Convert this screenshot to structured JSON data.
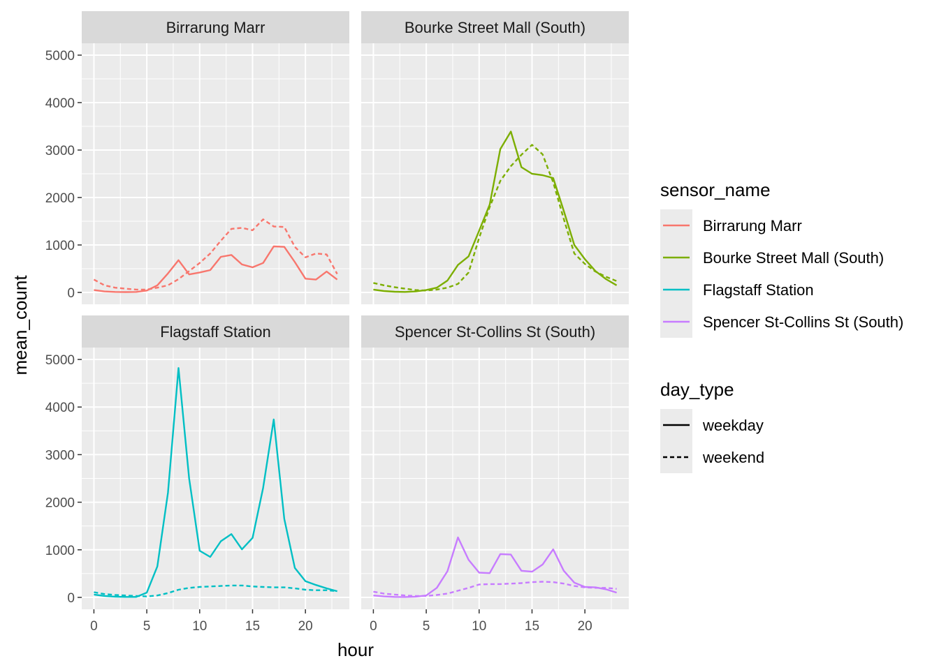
{
  "chart_data": {
    "type": "line",
    "layout": "facet_wrap 2x2",
    "xlabel": "hour",
    "ylabel": "mean_count",
    "xlim": [
      -1.15,
      24.15
    ],
    "ylim": [
      -250,
      5250
    ],
    "x_ticks": [
      0,
      5,
      10,
      15,
      20
    ],
    "x_tick_labels": [
      "0",
      "5",
      "10",
      "15",
      "20"
    ],
    "y_ticks": [
      0,
      1000,
      2000,
      3000,
      4000,
      5000
    ],
    "y_tick_labels": [
      "0",
      "1000",
      "2000",
      "3000",
      "4000",
      "5000"
    ],
    "x": [
      0,
      1,
      2,
      3,
      4,
      5,
      6,
      7,
      8,
      9,
      10,
      11,
      12,
      13,
      14,
      15,
      16,
      17,
      18,
      19,
      20,
      21,
      22,
      23
    ],
    "grid": true,
    "legend_placement": "right",
    "colors": {
      "Birrarung Marr": "#F8766D",
      "Bourke Street Mall (South)": "#7CAE00",
      "Flagstaff Station": "#00BFC4",
      "Spencer St-Collins St (South)": "#C77CFF"
    },
    "panels": [
      {
        "strip": "Birrarung Marr",
        "series": [
          {
            "sensor_name": "Birrarung Marr",
            "day_type": "weekday",
            "values": [
              50,
              20,
              10,
              8,
              10,
              40,
              150,
              400,
              680,
              380,
              420,
              470,
              750,
              790,
              590,
              530,
              620,
              970,
              960,
              640,
              290,
              270,
              440,
              270
            ]
          },
          {
            "sensor_name": "Birrarung Marr",
            "day_type": "weekend",
            "values": [
              270,
              150,
              100,
              80,
              60,
              60,
              100,
              150,
              280,
              450,
              620,
              820,
              1090,
              1340,
              1360,
              1310,
              1540,
              1390,
              1380,
              960,
              740,
              820,
              800,
              390
            ]
          }
        ]
      },
      {
        "strip": "Bourke Street Mall (South)",
        "series": [
          {
            "sensor_name": "Bourke Street Mall (South)",
            "day_type": "weekday",
            "values": [
              60,
              30,
              15,
              10,
              20,
              50,
              100,
              250,
              580,
              760,
              1300,
              1850,
              3020,
              3390,
              2640,
              2500,
              2470,
              2410,
              1720,
              1000,
              700,
              450,
              280,
              150
            ]
          },
          {
            "sensor_name": "Bourke Street Mall (South)",
            "day_type": "weekend",
            "values": [
              200,
              150,
              110,
              80,
              50,
              40,
              60,
              100,
              180,
              420,
              1150,
              1800,
              2350,
              2660,
              2900,
              3110,
              2910,
              2320,
              1550,
              820,
              600,
              440,
              330,
              240
            ]
          }
        ]
      },
      {
        "strip": "Flagstaff Station",
        "series": [
          {
            "sensor_name": "Flagstaff Station",
            "day_type": "weekday",
            "values": [
              60,
              30,
              15,
              10,
              10,
              100,
              650,
              2200,
              4820,
              2500,
              980,
              850,
              1180,
              1330,
              1010,
              1250,
              2300,
              3740,
              1650,
              620,
              340,
              260,
              190,
              130
            ]
          },
          {
            "sensor_name": "Flagstaff Station",
            "day_type": "weekend",
            "values": [
              110,
              70,
              50,
              40,
              30,
              20,
              40,
              90,
              160,
              200,
              220,
              230,
              240,
              250,
              250,
              230,
              220,
              210,
              210,
              190,
              160,
              150,
              150,
              130
            ]
          }
        ]
      },
      {
        "strip": "Spencer St-Collins St (South)",
        "series": [
          {
            "sensor_name": "Spencer St-Collins St (South)",
            "day_type": "weekday",
            "values": [
              40,
              20,
              10,
              8,
              15,
              40,
              200,
              550,
              1260,
              790,
              520,
              510,
              910,
              900,
              560,
              540,
              690,
              1010,
              560,
              310,
              220,
              210,
              170,
              100
            ]
          },
          {
            "sensor_name": "Spencer St-Collins St (South)",
            "day_type": "weekend",
            "values": [
              120,
              80,
              60,
              40,
              30,
              30,
              50,
              80,
              140,
              200,
              270,
              280,
              280,
              290,
              300,
              320,
              330,
              320,
              290,
              240,
              210,
              200,
              200,
              180
            ]
          }
        ]
      }
    ],
    "legends": [
      {
        "title": "sensor_name",
        "type": "color",
        "entries": [
          "Birrarung Marr",
          "Bourke Street Mall (South)",
          "Flagstaff Station",
          "Spencer St-Collins St (South)"
        ]
      },
      {
        "title": "day_type",
        "type": "linetype",
        "entries": [
          "weekday",
          "weekend"
        ],
        "styles": [
          "solid",
          "dashed"
        ]
      }
    ]
  }
}
